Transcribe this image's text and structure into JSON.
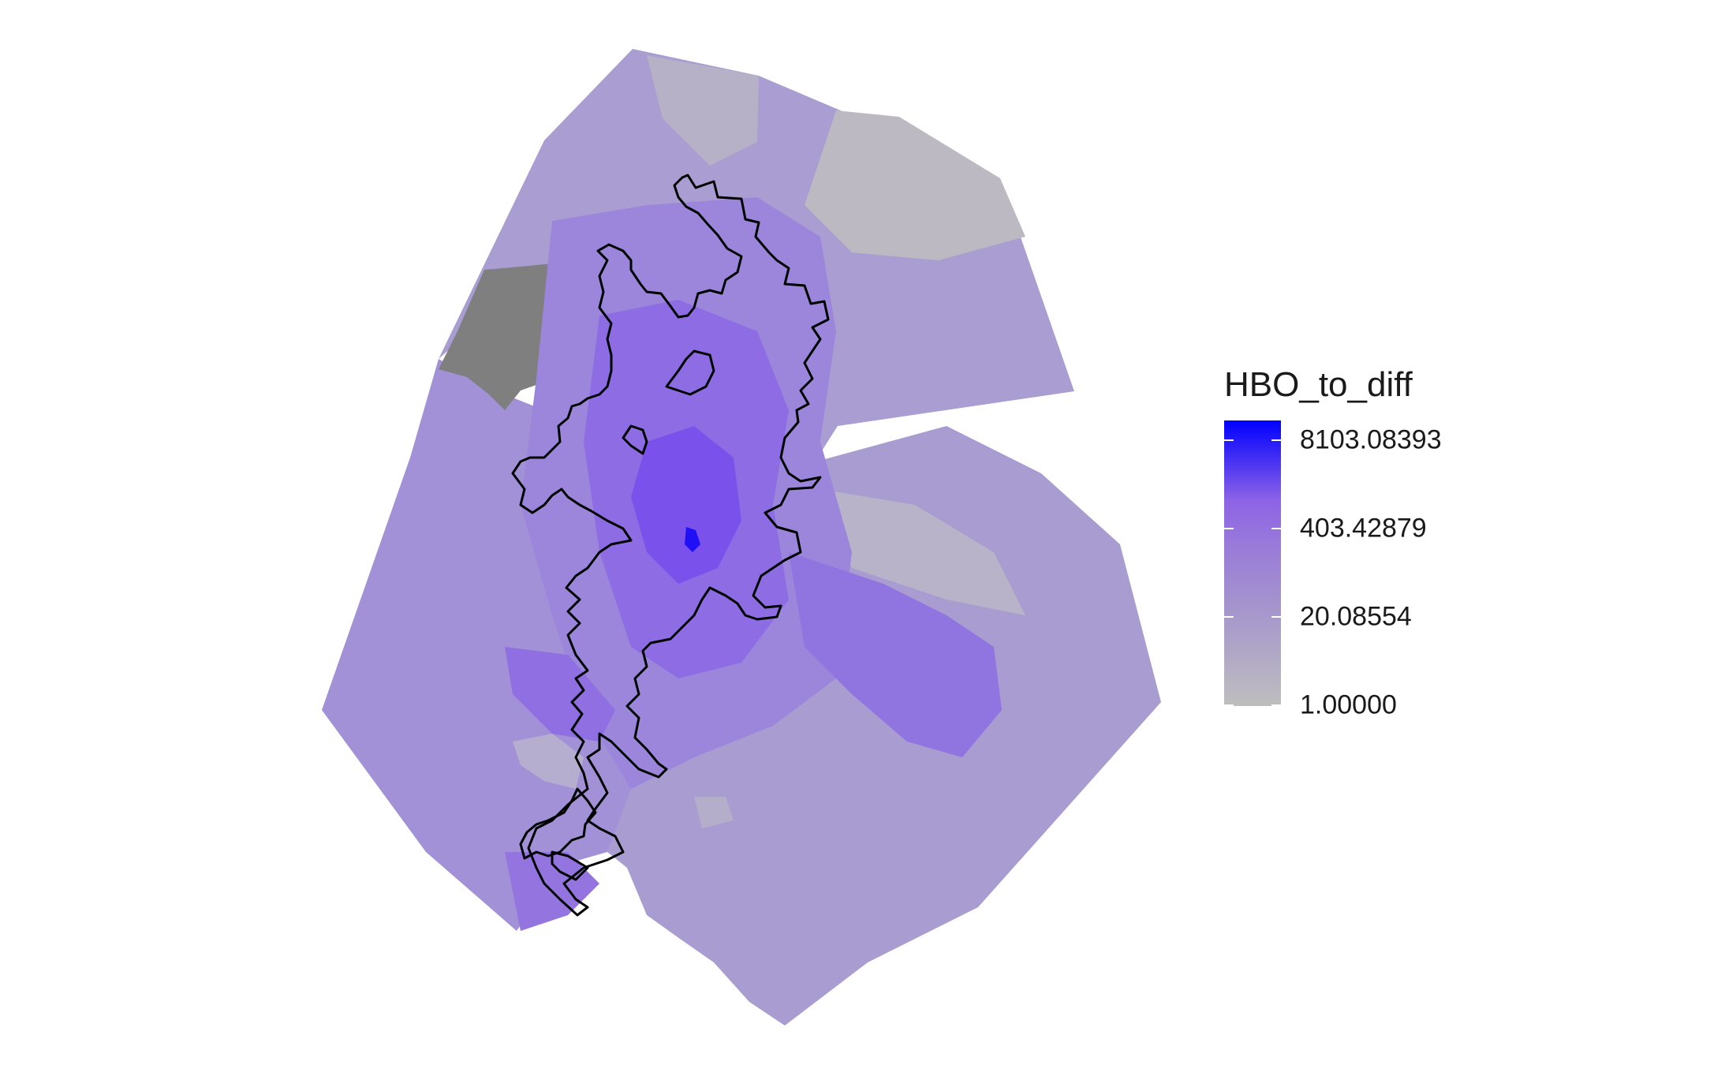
{
  "legend": {
    "title": "HBO_to_diff",
    "labels": [
      "8103.08393",
      "403.42879",
      "20.08554",
      "1.00000"
    ],
    "colors": {
      "low": "#bebebe",
      "high": "#0000ff"
    }
  },
  "map": {
    "fill_colors": {
      "base": "#a99cd0",
      "light": "#b6aece",
      "grey": "#bdbabf",
      "medium": "#9b85dc",
      "strong": "#8c6ae2",
      "core": "#7c52ea",
      "peak": "#1f10f5",
      "missing": "#7f7f7f"
    },
    "boundary_color": "#000000"
  }
}
